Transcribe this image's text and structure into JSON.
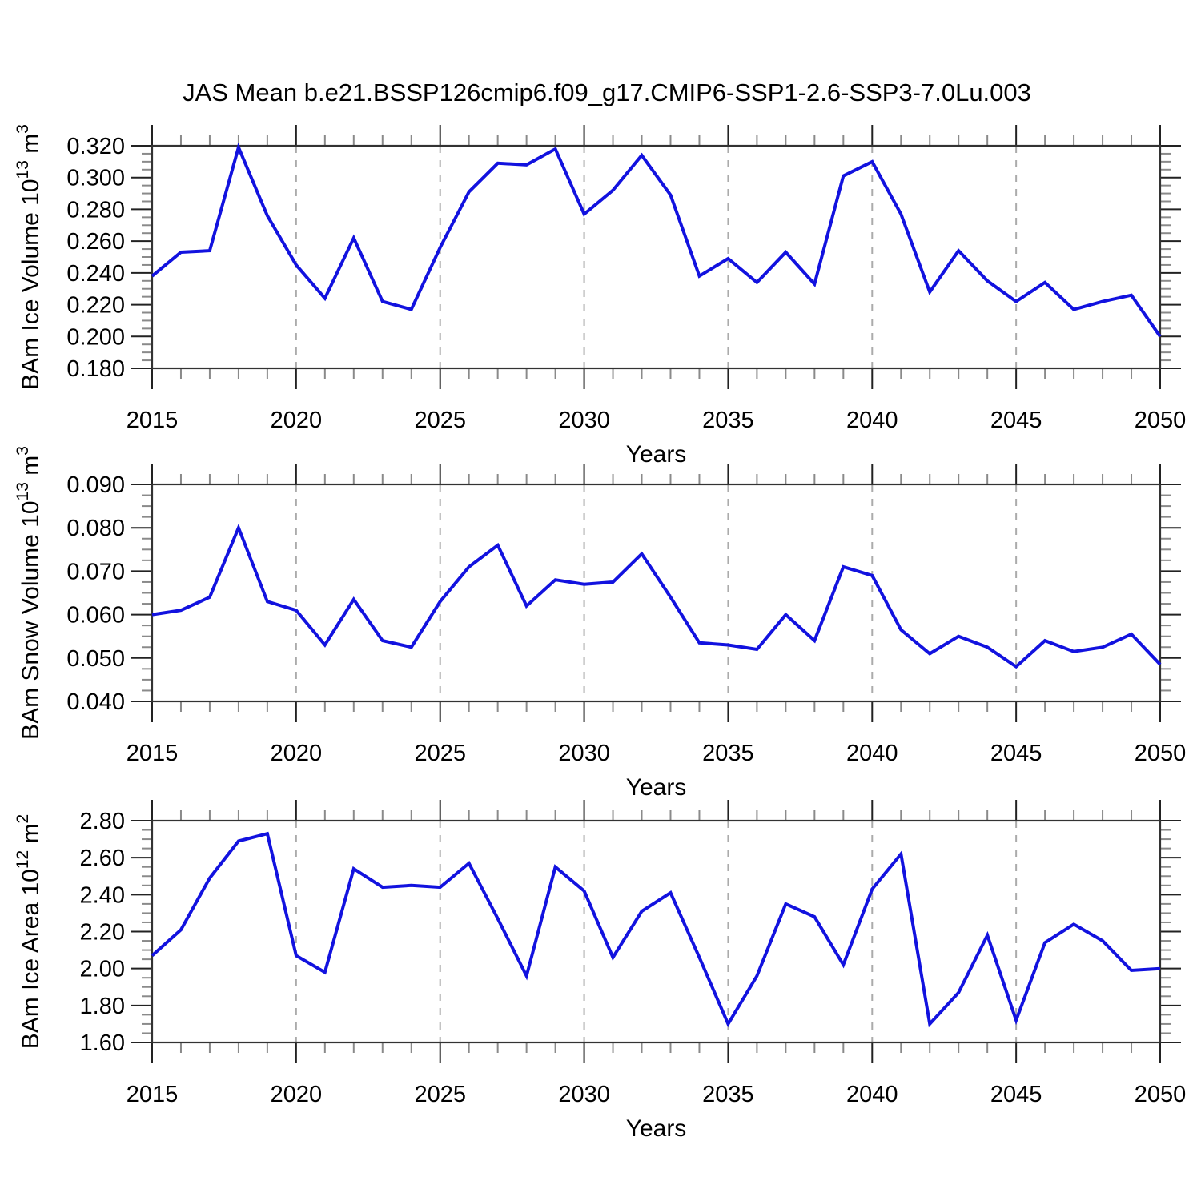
{
  "title": "JAS Mean b.e21.BSSP126cmip6.f09_g17.CMIP6-SSP1-2.6-SSP3-7.0Lu.003",
  "colors": {
    "line": "#1212df",
    "axis": "#333333",
    "major_tick": "#222222",
    "minor_tick": "#8a8a8a",
    "gridline": "#ababab",
    "text": "#000000"
  },
  "x_axis": {
    "label": "Years",
    "min": 2015,
    "max": 2050,
    "major_step": 5,
    "minor_step": 1,
    "major_tick_labels": [
      "2015",
      "2020",
      "2025",
      "2030",
      "2035",
      "2040",
      "2045",
      "2050"
    ],
    "gridlines": [
      2020,
      2025,
      2030,
      2035,
      2040,
      2045
    ],
    "years": [
      2015,
      2016,
      2017,
      2018,
      2019,
      2020,
      2021,
      2022,
      2023,
      2024,
      2025,
      2026,
      2027,
      2028,
      2029,
      2030,
      2031,
      2032,
      2033,
      2034,
      2035,
      2036,
      2037,
      2038,
      2039,
      2040,
      2041,
      2042,
      2043,
      2044,
      2045,
      2046,
      2047,
      2048,
      2049,
      2050
    ]
  },
  "chart_data": [
    {
      "id": "ice-volume",
      "type": "line",
      "ylabel": "BAm Ice Volume 10^13 m^3",
      "xlabel": "Years",
      "ylim": [
        0.18,
        0.32
      ],
      "ymajor": 0.02,
      "yminor": 0.005,
      "decimals": 3,
      "y_tick_labels": [
        "0.180",
        "0.200",
        "0.220",
        "0.240",
        "0.260",
        "0.280",
        "0.300",
        "0.320"
      ],
      "grid": "vertical-dashed",
      "legend": "none",
      "values": [
        0.238,
        0.253,
        0.254,
        0.319,
        0.276,
        0.245,
        0.224,
        0.262,
        0.222,
        0.217,
        0.256,
        0.291,
        0.309,
        0.308,
        0.318,
        0.277,
        0.292,
        0.314,
        0.289,
        0.238,
        0.249,
        0.234,
        0.253,
        0.233,
        0.301,
        0.31,
        0.277,
        0.228,
        0.254,
        0.235,
        0.222,
        0.234,
        0.217,
        0.222,
        0.226,
        0.2
      ]
    },
    {
      "id": "snow-volume",
      "type": "line",
      "ylabel": "BAm Snow Volume 10^13 m^3",
      "xlabel": "Years",
      "ylim": [
        0.04,
        0.09
      ],
      "ymajor": 0.01,
      "yminor": 0.0025,
      "decimals": 3,
      "y_tick_labels": [
        "0.040",
        "0.050",
        "0.060",
        "0.070",
        "0.080",
        "0.090"
      ],
      "grid": "vertical-dashed",
      "legend": "none",
      "values": [
        0.06,
        0.061,
        0.064,
        0.08,
        0.063,
        0.061,
        0.053,
        0.0635,
        0.054,
        0.0525,
        0.063,
        0.071,
        0.076,
        0.062,
        0.068,
        0.067,
        0.0675,
        0.074,
        0.064,
        0.0535,
        0.053,
        0.052,
        0.06,
        0.054,
        0.071,
        0.069,
        0.0565,
        0.051,
        0.055,
        0.0525,
        0.048,
        0.054,
        0.0515,
        0.0525,
        0.0555,
        0.0485
      ]
    },
    {
      "id": "ice-area",
      "type": "line",
      "ylabel": "BAm Ice Area 10^12 m^2",
      "xlabel": "Years",
      "ylim": [
        1.6,
        2.8
      ],
      "ymajor": 0.2,
      "yminor": 0.05,
      "decimals": 2,
      "y_tick_labels": [
        "1.60",
        "1.80",
        "2.00",
        "2.20",
        "2.40",
        "2.60",
        "2.80"
      ],
      "grid": "vertical-dashed",
      "legend": "none",
      "values": [
        2.07,
        2.21,
        2.49,
        2.69,
        2.73,
        2.07,
        1.98,
        2.54,
        2.44,
        2.45,
        2.44,
        2.57,
        2.27,
        1.96,
        2.55,
        2.42,
        2.06,
        2.31,
        2.41,
        2.06,
        1.7,
        1.96,
        2.35,
        2.28,
        2.02,
        2.43,
        2.62,
        1.7,
        1.87,
        2.18,
        1.72,
        2.14,
        2.24,
        2.15,
        1.99,
        2.0
      ]
    }
  ]
}
